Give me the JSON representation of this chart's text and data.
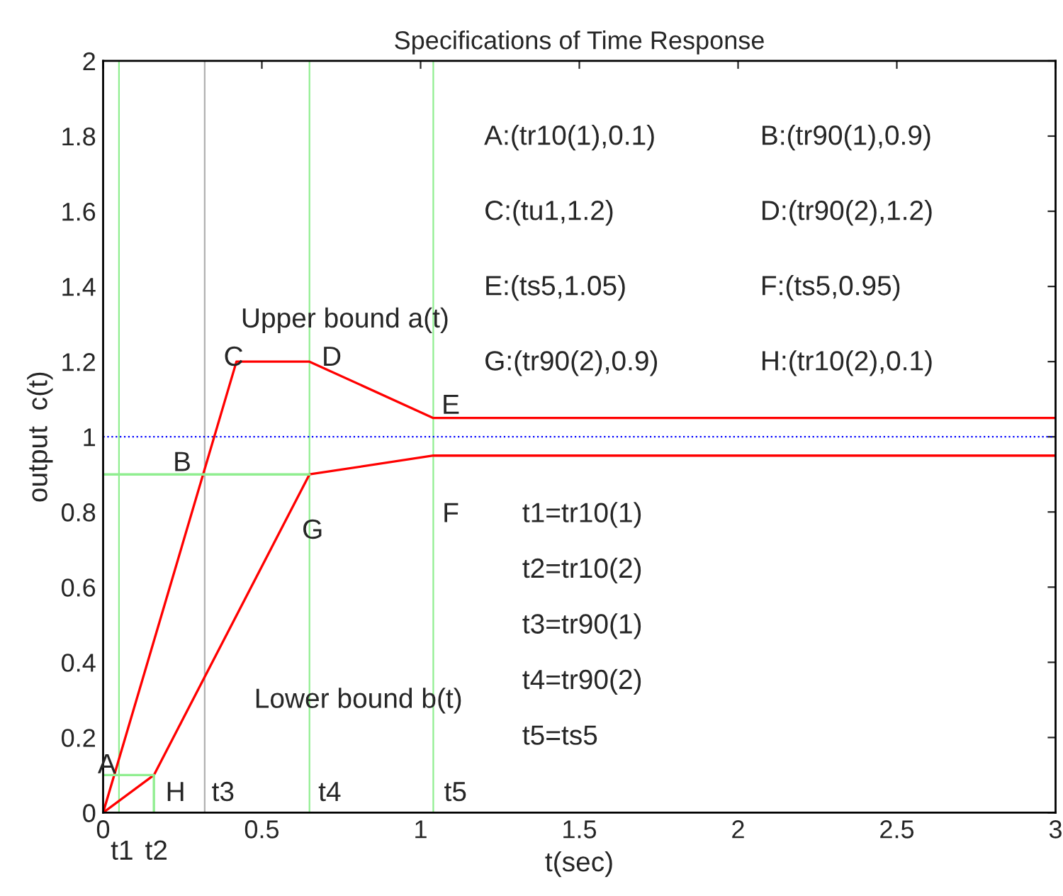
{
  "chart_data": {
    "type": "line",
    "title": "Specifications of Time Response",
    "xlabel": "t(sec)",
    "ylabel": "output  c(t)",
    "series": [
      {
        "color": "#ff0000",
        "x": [
          0,
          0.42,
          0.65,
          1.04,
          3
        ],
        "values": [
          0,
          1.2,
          1.2,
          1.05,
          1.05
        ]
      },
      {
        "color": "#ff0000",
        "x": [
          0,
          0.16,
          0.65,
          1.04,
          3
        ],
        "values": [
          0,
          0.1,
          0.9,
          0.95,
          0.95
        ]
      },
      {
        "color": "#90ee90",
        "x": [
          0,
          0.16
        ],
        "values": [
          0.1,
          0.1
        ]
      },
      {
        "color": "#90ee90",
        "x": [
          0.16,
          0.16
        ],
        "values": [
          0,
          0.1
        ]
      },
      {
        "color": "#90ee90",
        "x": [
          0,
          0.65
        ],
        "values": [
          0.9,
          0.9
        ]
      }
    ],
    "ref_lines": [
      {
        "axis": "x",
        "value": 0.05,
        "color": "#90ee90"
      },
      {
        "axis": "x",
        "value": 0.32,
        "color": "#b0b0b0"
      },
      {
        "axis": "x",
        "value": 0.65,
        "color": "#90ee90"
      },
      {
        "axis": "x",
        "value": 1.04,
        "color": "#90ee90"
      },
      {
        "axis": "y",
        "value": 1,
        "color": "#0000ff",
        "line_style": "dotted"
      }
    ],
    "xlim": [
      0,
      3
    ],
    "xticks": [
      0,
      0.5,
      1,
      1.5,
      2,
      2.5,
      3
    ],
    "ylim": [
      0,
      2
    ],
    "yticks": [
      0,
      0.2,
      0.4,
      0.6,
      0.8,
      1,
      1.2,
      1.4,
      1.6,
      1.8,
      2
    ],
    "annotations": [
      "A",
      "B",
      "C",
      "D",
      "E",
      "F",
      "G",
      "H",
      "t1",
      "t2",
      "t3",
      "t4",
      "t5",
      "Upper bound a(t)",
      "Lower bound b(t)",
      "A:(tr10(1),0.1)",
      "B:(tr90(1),0.9)",
      "C:(tu1,1.2)",
      "D:(tr90(2),1.2)",
      "E:(ts5,1.05)",
      "F:(ts5,0.95)",
      "G:(tr90(2),0.9)",
      "H:(tr10(2),0.1)",
      "t1=tr10(1)",
      "t2=tr10(2)",
      "t3=tr90(1)",
      "t4=tr90(2)",
      "t5=ts5"
    ]
  }
}
